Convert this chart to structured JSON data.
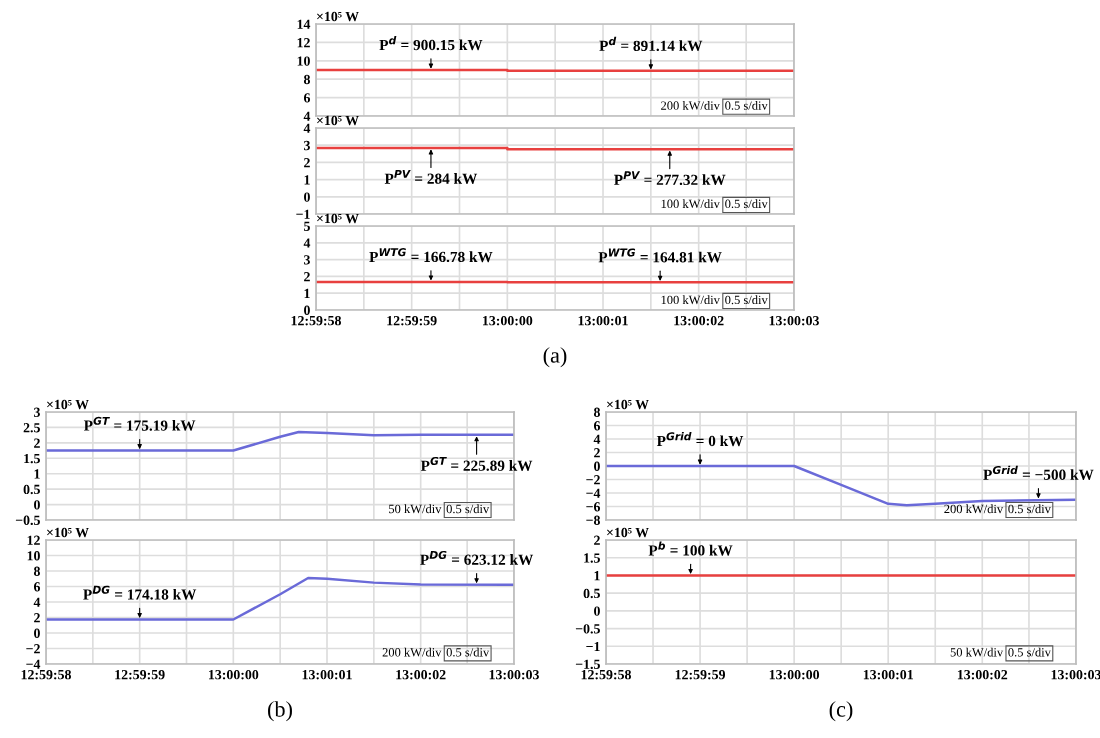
{
  "chart_data": [
    {
      "type": "line",
      "ylabel": "×10⁵ W",
      "tick_labels": "y",
      "grid": true,
      "xlim": [
        12.999444,
        13.000833
      ],
      "ylim": [
        4,
        14
      ],
      "yticks": [
        4,
        6,
        8,
        10,
        12,
        14
      ],
      "xticks": [
        {
          "value": 12.999444,
          "label": null
        },
        {
          "value": 12.999583,
          "label": null
        },
        {
          "value": 12.999722,
          "label": null
        },
        {
          "value": 12.999861,
          "label": null
        },
        {
          "value": 13.0,
          "label": null
        },
        {
          "value": 13.000139,
          "label": null
        },
        {
          "value": 13.000278,
          "label": null
        },
        {
          "value": 13.000417,
          "label": null
        },
        {
          "value": 13.000556,
          "label": null
        },
        {
          "value": 13.000694,
          "label": null
        },
        {
          "value": 13.000833,
          "label": null
        }
      ],
      "series": [
        {
          "color": "#e8403f",
          "x": [
            12.999444,
            13.0,
            13.0,
            13.000833
          ],
          "values": [
            9.0,
            9.0,
            8.91,
            8.91
          ]
        }
      ],
      "annotations": [
        "200 kW/div",
        "0.5 s/div",
        {
          "text": "P$^{d}$ = 900.15 kW",
          "x": 12.999778,
          "y": 9.0
        },
        {
          "text": "P$^{d}$ = 891.14 kW",
          "x": 13.000417,
          "y": 8.91
        }
      ]
    },
    {
      "type": "line",
      "ylabel": "×10⁵ W",
      "tick_labels": "y",
      "grid": true,
      "xlim": [
        12.999444,
        13.000833
      ],
      "ylim": [
        -1,
        4
      ],
      "yticks": [
        -1,
        0,
        1,
        2,
        3,
        4
      ],
      "xticks": [
        {
          "value": 12.999444,
          "label": null
        },
        {
          "value": 12.999583,
          "label": null
        },
        {
          "value": 12.999722,
          "label": null
        },
        {
          "value": 12.999861,
          "label": null
        },
        {
          "value": 13.0,
          "label": null
        },
        {
          "value": 13.000139,
          "label": null
        },
        {
          "value": 13.000278,
          "label": null
        },
        {
          "value": 13.000417,
          "label": null
        },
        {
          "value": 13.000556,
          "label": null
        },
        {
          "value": 13.000694,
          "label": null
        },
        {
          "value": 13.000833,
          "label": null
        }
      ],
      "series": [
        {
          "color": "#e8403f",
          "x": [
            12.999444,
            13.0,
            13.0,
            13.000833
          ],
          "values": [
            2.84,
            2.84,
            2.77,
            2.77
          ]
        }
      ],
      "annotations": [
        "100 kW/div",
        "0.5 s/div",
        {
          "text": "P$^{PV}$ = 284 kW",
          "x": 12.999778,
          "y": 2.84
        },
        {
          "text": "P$^{PV}$ = 277.32 kW",
          "x": 13.000472,
          "y": 2.77
        }
      ]
    },
    {
      "type": "line",
      "ylabel": "×10⁵ W",
      "grid": true,
      "xlim": [
        12.999444,
        13.000833
      ],
      "ylim": [
        0,
        5
      ],
      "yticks": [
        0,
        1,
        2,
        3,
        4,
        5
      ],
      "xticks": [
        {
          "value": 12.999444,
          "label": "12:59:58"
        },
        {
          "value": 12.999583,
          "label": null
        },
        {
          "value": 12.999722,
          "label": "12:59:59"
        },
        {
          "value": 12.999861,
          "label": null
        },
        {
          "value": 13.0,
          "label": "13:00:00"
        },
        {
          "value": 13.000139,
          "label": null
        },
        {
          "value": 13.000278,
          "label": "13:00:01"
        },
        {
          "value": 13.000417,
          "label": null
        },
        {
          "value": 13.000556,
          "label": "13:00:02"
        },
        {
          "value": 13.000694,
          "label": null
        },
        {
          "value": 13.000833,
          "label": "13:00:03"
        }
      ],
      "series": [
        {
          "color": "#e8403f",
          "x": [
            12.999444,
            13.0,
            13.0,
            13.000833
          ],
          "values": [
            1.67,
            1.67,
            1.65,
            1.65
          ]
        }
      ],
      "annotations": [
        "100 kW/div",
        "0.5 s/div",
        "(a)",
        {
          "text": "P$^{WTG}$ = 166.78 kW",
          "x": 12.999778,
          "y": 1.67
        },
        {
          "text": "P$^{WTG}$ = 164.81 kW",
          "x": 13.000444,
          "y": 1.65
        }
      ]
    },
    {
      "type": "line",
      "ylabel": "×10⁵ W",
      "tick_labels": "y",
      "grid": true,
      "xlim": [
        12.999444,
        13.000833
      ],
      "ylim": [
        -0.5,
        3
      ],
      "yticks": [
        -0.5,
        0,
        0.5,
        1,
        1.5,
        2,
        2.5,
        3
      ],
      "xticks": [
        {
          "value": 12.999444,
          "label": null
        },
        {
          "value": 12.999583,
          "label": null
        },
        {
          "value": 12.999722,
          "label": null
        },
        {
          "value": 12.999861,
          "label": null
        },
        {
          "value": 13.0,
          "label": null
        },
        {
          "value": 13.000139,
          "label": null
        },
        {
          "value": 13.000278,
          "label": null
        },
        {
          "value": 13.000417,
          "label": null
        },
        {
          "value": 13.000556,
          "label": null
        },
        {
          "value": 13.000694,
          "label": null
        },
        {
          "value": 13.000833,
          "label": null
        }
      ],
      "series": [
        {
          "color": "#6a6ad8",
          "x": [
            12.999444,
            13.0,
            13.000139,
            13.000194,
            13.000278,
            13.000417,
            13.000556,
            13.000833
          ],
          "values": [
            1.75,
            1.75,
            2.2,
            2.35,
            2.32,
            2.25,
            2.26,
            2.26
          ]
        }
      ],
      "annotations": [
        "50 kW/div",
        "0.5 s/div",
        {
          "text": "P$^{GT}$ = 175.19 kW",
          "x": 12.999722,
          "y": 1.75
        },
        {
          "text": "P$^{GT}$ = 225.89 kW",
          "x": 13.000722,
          "y": 2.26
        }
      ]
    },
    {
      "type": "line",
      "ylabel": "×10⁵ W",
      "grid": true,
      "xlim": [
        12.999444,
        13.000833
      ],
      "ylim": [
        -4,
        12
      ],
      "yticks": [
        -4,
        -2,
        0,
        2,
        4,
        6,
        8,
        10,
        12
      ],
      "xticks": [
        {
          "value": 12.999444,
          "label": "12:59:58"
        },
        {
          "value": 12.999583,
          "label": null
        },
        {
          "value": 12.999722,
          "label": "12:59:59"
        },
        {
          "value": 12.999861,
          "label": null
        },
        {
          "value": 13.0,
          "label": "13:00:00"
        },
        {
          "value": 13.000139,
          "label": null
        },
        {
          "value": 13.000278,
          "label": "13:00:01"
        },
        {
          "value": 13.000417,
          "label": null
        },
        {
          "value": 13.000556,
          "label": "13:00:02"
        },
        {
          "value": 13.000694,
          "label": null
        },
        {
          "value": 13.000833,
          "label": "13:00:03"
        }
      ],
      "series": [
        {
          "color": "#6a6ad8",
          "x": [
            12.999444,
            13.0,
            13.000139,
            13.000222,
            13.000278,
            13.000417,
            13.000556,
            13.000833
          ],
          "values": [
            1.74,
            1.74,
            5.0,
            7.1,
            7.0,
            6.5,
            6.25,
            6.23
          ]
        }
      ],
      "annotations": [
        "200 kW/div",
        "0.5 s/div",
        "(b)",
        {
          "text": "P$^{DG}$ = 174.18 kW",
          "x": 12.999722,
          "y": 1.74
        },
        {
          "text": "P$^{DG}$ = 623.12 kW",
          "x": 13.000722,
          "y": 6.23
        }
      ]
    },
    {
      "type": "line",
      "ylabel": "×10⁵ W",
      "tick_labels": "y",
      "grid": true,
      "xlim": [
        12.999444,
        13.000833
      ],
      "ylim": [
        -8,
        8
      ],
      "yticks": [
        -8,
        -6,
        -4,
        -2,
        0,
        2,
        4,
        6,
        8
      ],
      "xticks": [
        {
          "value": 12.999444,
          "label": null
        },
        {
          "value": 12.999583,
          "label": null
        },
        {
          "value": 12.999722,
          "label": null
        },
        {
          "value": 12.999861,
          "label": null
        },
        {
          "value": 13.0,
          "label": null
        },
        {
          "value": 13.000139,
          "label": null
        },
        {
          "value": 13.000278,
          "label": null
        },
        {
          "value": 13.000417,
          "label": null
        },
        {
          "value": 13.000556,
          "label": null
        },
        {
          "value": 13.000694,
          "label": null
        },
        {
          "value": 13.000833,
          "label": null
        }
      ],
      "series": [
        {
          "color": "#6a6ad8",
          "x": [
            12.999444,
            13.0,
            13.000139,
            13.000278,
            13.000333,
            13.000417,
            13.000556,
            13.000833
          ],
          "values": [
            0,
            0,
            -2.8,
            -5.6,
            -5.8,
            -5.6,
            -5.2,
            -5.0
          ]
        }
      ],
      "annotations": [
        "200 kW/div",
        "0.5 s/div",
        {
          "text": "P$^{Grid}$ = 0 kW",
          "x": 12.999722,
          "y": 0
        },
        {
          "text": "P$^{Grid}$ = −500 kW",
          "x": 13.000722,
          "y": -5.0
        }
      ]
    },
    {
      "type": "line",
      "ylabel": "×10⁵ W",
      "grid": true,
      "xlim": [
        12.999444,
        13.000833
      ],
      "ylim": [
        -1.5,
        2
      ],
      "yticks": [
        -1.5,
        -1,
        -0.5,
        0,
        0.5,
        1,
        1.5,
        2
      ],
      "xticks": [
        {
          "value": 12.999444,
          "label": "12:59:58"
        },
        {
          "value": 12.999583,
          "label": null
        },
        {
          "value": 12.999722,
          "label": "12:59:59"
        },
        {
          "value": 12.999861,
          "label": null
        },
        {
          "value": 13.0,
          "label": "13:00:00"
        },
        {
          "value": 13.000139,
          "label": null
        },
        {
          "value": 13.000278,
          "label": "13:00:01"
        },
        {
          "value": 13.000417,
          "label": null
        },
        {
          "value": 13.000556,
          "label": "13:00:02"
        },
        {
          "value": 13.000694,
          "label": null
        },
        {
          "value": 13.000833,
          "label": "13:00:03"
        }
      ],
      "series": [
        {
          "color": "#e8403f",
          "x": [
            12.999444,
            13.000833
          ],
          "values": [
            1,
            1
          ]
        }
      ],
      "annotations": [
        "50 kW/div",
        "0.5 s/div",
        "(c)",
        {
          "text": "P$^{b}$ = 100 kW",
          "x": 12.999694,
          "y": 1
        }
      ]
    }
  ]
}
